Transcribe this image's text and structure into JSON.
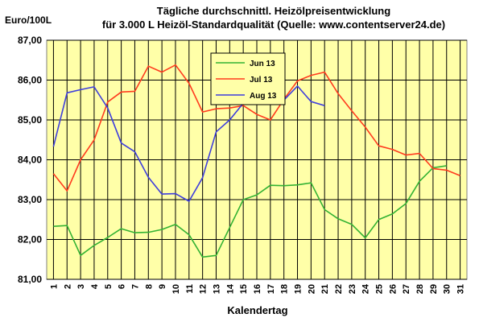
{
  "chart_data": {
    "type": "line",
    "title_lines": [
      "Tägliche durchschnittl. Heizölpreisentwicklung",
      "für 3.000 L Heizöl-Standardqualität (Quelle: www.contentserver24.de)"
    ],
    "ylabel": "Euro/100L",
    "xlabel": "Kalendertag",
    "ylim": [
      81,
      87
    ],
    "yticks": [
      "81,00",
      "82,00",
      "83,00",
      "84,00",
      "85,00",
      "86,00",
      "87,00"
    ],
    "xticks": [
      "1",
      "2",
      "3",
      "4",
      "5",
      "6",
      "7",
      "8",
      "9",
      "10",
      "11",
      "12",
      "13",
      "14",
      "15",
      "16",
      "17",
      "18",
      "19",
      "20",
      "21",
      "22",
      "23",
      "24",
      "25",
      "26",
      "27",
      "28",
      "29",
      "30",
      "31"
    ],
    "grid": true,
    "legend_position": "top-center",
    "colors": {
      "plot_background": "#ffffa8",
      "grid": "#000000",
      "border": "#808080"
    },
    "series": [
      {
        "name": "Jun 13",
        "color": "#33b233",
        "values": [
          82.33,
          82.35,
          81.6,
          81.85,
          82.05,
          82.27,
          82.17,
          82.18,
          82.25,
          82.38,
          82.12,
          81.56,
          81.6,
          82.3,
          83.0,
          83.12,
          83.36,
          83.35,
          83.37,
          83.42,
          82.75,
          82.52,
          82.38,
          82.04,
          82.5,
          82.64,
          82.9,
          83.46,
          83.8,
          83.85,
          null
        ]
      },
      {
        "name": "Jul 13",
        "color": "#ff3b1e",
        "values": [
          83.65,
          83.22,
          84.0,
          84.5,
          85.45,
          85.7,
          85.72,
          86.35,
          86.2,
          86.38,
          85.92,
          85.2,
          85.28,
          85.3,
          85.36,
          85.14,
          85.0,
          85.52,
          85.98,
          86.12,
          86.2,
          85.66,
          85.23,
          84.82,
          84.35,
          84.26,
          84.12,
          84.16,
          83.78,
          83.74,
          83.6
        ]
      },
      {
        "name": "Aug 13",
        "color": "#3e3edc",
        "values": [
          84.33,
          85.68,
          85.76,
          85.83,
          85.3,
          84.42,
          84.2,
          83.56,
          83.14,
          83.15,
          82.96,
          83.55,
          84.7,
          85.0,
          85.42,
          85.5,
          85.48,
          85.5,
          85.85,
          85.46,
          85.36,
          null,
          null,
          null,
          null,
          null,
          null,
          null,
          null,
          null,
          null
        ]
      }
    ]
  }
}
